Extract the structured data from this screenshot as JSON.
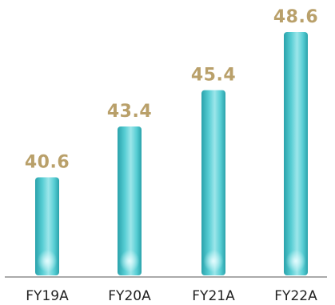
{
  "chart_data": {
    "type": "bar",
    "categories": [
      "FY19A",
      "FY20A",
      "FY21A",
      "FY22A"
    ],
    "values": [
      40.6,
      43.4,
      45.4,
      48.6
    ],
    "data_labels": [
      "40.6",
      "43.4",
      "45.4",
      "48.6"
    ],
    "title": "",
    "xlabel": "",
    "ylabel": "",
    "ylim": [
      35.2,
      48.6
    ],
    "grid": false,
    "colors": {
      "bar_main": "#56cdd3",
      "bar_highlight": "#b9f3f6",
      "bar_shadow": "#2aa2ab",
      "value_label": "#b9a06a",
      "category_label": "#222222",
      "axis": "#555555"
    }
  }
}
